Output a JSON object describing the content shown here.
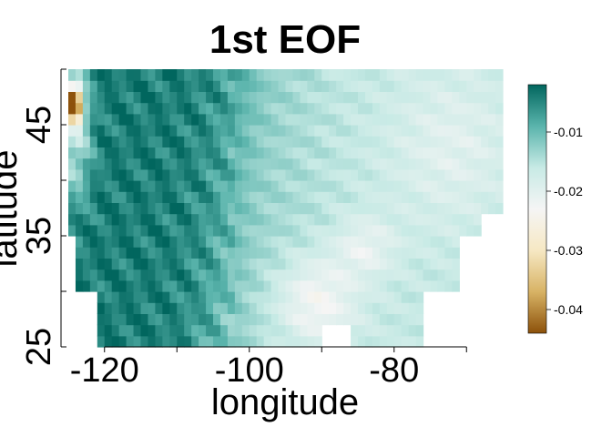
{
  "chart_data": {
    "type": "heatmap",
    "title": "1st EOF",
    "xlabel": "longitude",
    "ylabel": "latitude",
    "xlim": [
      -125,
      -65
    ],
    "ylim": [
      25,
      50
    ],
    "x_ticks": [
      -120,
      -110,
      -100,
      -90,
      -80,
      -70
    ],
    "x_tick_labels": [
      "-120",
      "",
      "-100",
      "",
      "-80",
      ""
    ],
    "y_ticks": [
      25,
      30,
      35,
      40,
      45,
      50
    ],
    "y_tick_labels": [
      "25",
      "",
      "35",
      "",
      "45",
      ""
    ],
    "colorbar": {
      "range": [
        -0.044,
        -0.002
      ],
      "ticks": [
        -0.01,
        -0.02,
        -0.03,
        -0.04
      ],
      "tick_labels": [
        "-0.01",
        "-0.02",
        "-0.03",
        "-0.04"
      ],
      "palette": "BrBG",
      "colors": [
        "#8c510a",
        "#d8b365",
        "#f6e8c3",
        "#f5f5f5",
        "#c7eae5",
        "#5ab4ac",
        "#01665e"
      ]
    },
    "values_note_free": true,
    "field": {
      "west_mountain_value": -0.004,
      "central_plains_value": -0.012,
      "east_value": -0.016,
      "gulf_region_value": -0.024,
      "pacific_coast_min_value": -0.043
    },
    "missing_regions": [
      {
        "lon": [
          -125,
          -121
        ],
        "lat": [
          25,
          30.5
        ]
      },
      {
        "lon": [
          -90,
          -86
        ],
        "lat": [
          25,
          27.5
        ]
      },
      {
        "lon": [
          -75.5,
          -68
        ],
        "lat": [
          25,
          30
        ]
      },
      {
        "lon": [
          -68,
          -65
        ],
        "lat": [
          25,
          37
        ]
      },
      {
        "lon": [
          -71,
          -68
        ],
        "lat": [
          30,
          35
        ]
      },
      {
        "lon": [
          -125,
          -124
        ],
        "lat": [
          30.5,
          35
        ]
      }
    ]
  }
}
